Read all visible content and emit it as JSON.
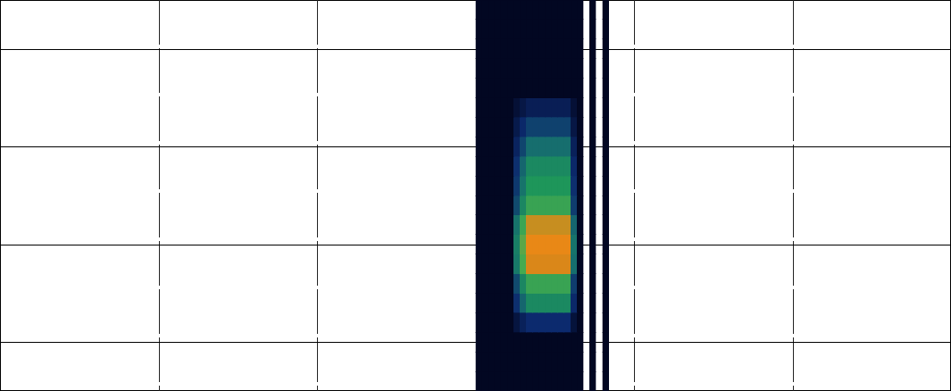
{
  "chart_data": {
    "type": "heatmap",
    "xlim": [
      0,
      6
    ],
    "ylim": [
      0,
      4
    ],
    "xticks": [
      1,
      2,
      3,
      4,
      5
    ],
    "yticks": [
      0.5,
      1.5,
      2.5,
      3.5
    ],
    "grid": true,
    "tick_labels": false,
    "cell_range": [
      0,
      1
    ],
    "x_edges": [
      3.0,
      3.04,
      3.08,
      3.12,
      3.16,
      3.2,
      3.24,
      3.28,
      3.32,
      3.36,
      3.4,
      3.44,
      3.48,
      3.52,
      3.56,
      3.6,
      3.64,
      3.68,
      3.72,
      3.76,
      3.8,
      3.84,
      3.88
    ],
    "y_edges": [
      0,
      0.2,
      0.4,
      0.6,
      0.8,
      1.0,
      1.2,
      1.4,
      1.6,
      1.8,
      2.0,
      2.2,
      2.4,
      2.6,
      2.8,
      3.0,
      3.2,
      3.4,
      3.6,
      3.8,
      4.0
    ],
    "cells": [
      [
        0,
        0,
        0,
        0,
        0,
        0,
        0,
        0,
        0,
        0,
        0,
        0,
        0,
        0,
        0,
        0,
        0,
        null,
        0,
        null,
        0,
        null
      ],
      [
        0,
        0,
        0,
        0,
        0,
        0,
        0,
        0,
        0,
        0,
        0,
        0,
        0,
        0,
        0,
        0,
        0,
        null,
        0,
        null,
        0,
        null
      ],
      [
        0,
        0,
        0,
        0,
        0,
        0,
        0,
        0,
        0,
        0,
        0,
        0,
        0,
        0,
        0,
        0,
        0,
        null,
        0,
        null,
        0,
        null
      ],
      [
        0,
        0,
        0,
        0,
        0,
        0,
        0.06,
        0.11,
        0.15,
        0.15,
        0.15,
        0.15,
        0.15,
        0.15,
        0.15,
        0.05,
        0,
        null,
        0,
        null,
        0,
        null
      ],
      [
        0,
        0,
        0,
        0,
        0,
        0,
        0.16,
        0.28,
        0.4,
        0.4,
        0.4,
        0.4,
        0.4,
        0.4,
        0.4,
        0.14,
        0,
        null,
        0,
        null,
        0,
        null
      ],
      [
        0,
        0,
        0,
        0,
        0,
        0,
        0.22,
        0.39,
        0.55,
        0.55,
        0.55,
        0.55,
        0.55,
        0.55,
        0.55,
        0.19,
        0,
        null,
        0,
        null,
        0,
        null
      ],
      [
        0,
        0,
        0,
        0,
        0,
        0,
        0.34,
        0.6,
        0.85,
        0.85,
        0.85,
        0.85,
        0.85,
        0.85,
        0.85,
        0.3,
        0,
        null,
        0,
        null,
        0,
        null
      ],
      [
        0,
        0,
        0,
        0,
        0,
        0,
        0.36,
        0.63,
        0.9,
        0.9,
        0.9,
        0.9,
        0.9,
        0.9,
        0.9,
        0.32,
        0,
        null,
        0,
        null,
        0,
        null
      ],
      [
        0,
        0,
        0,
        0,
        0,
        0,
        0.32,
        0.56,
        0.8,
        0.8,
        0.8,
        0.8,
        0.8,
        0.8,
        0.8,
        0.28,
        0,
        null,
        0,
        null,
        0,
        null
      ],
      [
        0,
        0,
        0,
        0,
        0,
        0,
        0.22,
        0.39,
        0.55,
        0.55,
        0.55,
        0.55,
        0.55,
        0.55,
        0.55,
        0.19,
        0,
        null,
        0,
        null,
        0,
        null
      ],
      [
        0,
        0,
        0,
        0,
        0,
        0,
        0.18,
        0.32,
        0.45,
        0.45,
        0.45,
        0.45,
        0.45,
        0.45,
        0.45,
        0.16,
        0,
        null,
        0,
        null,
        0,
        null
      ],
      [
        0,
        0,
        0,
        0,
        0,
        0,
        0.16,
        0.28,
        0.4,
        0.4,
        0.4,
        0.4,
        0.4,
        0.4,
        0.4,
        0.14,
        0,
        null,
        0,
        null,
        0,
        null
      ],
      [
        0,
        0,
        0,
        0,
        0,
        0,
        0.12,
        0.21,
        0.3,
        0.3,
        0.3,
        0.3,
        0.3,
        0.3,
        0.3,
        0.11,
        0,
        null,
        0,
        null,
        0,
        null
      ],
      [
        0,
        0,
        0,
        0,
        0,
        0,
        0.08,
        0.14,
        0.2,
        0.2,
        0.2,
        0.2,
        0.2,
        0.2,
        0.2,
        0.07,
        0,
        null,
        0,
        null,
        0,
        null
      ],
      [
        0,
        0,
        0,
        0,
        0,
        0,
        0.04,
        0.07,
        0.1,
        0.1,
        0.1,
        0.1,
        0.1,
        0.1,
        0.1,
        0.04,
        0,
        null,
        0,
        null,
        0,
        null
      ],
      [
        0,
        0,
        0,
        0,
        0,
        0,
        0,
        0,
        0,
        0,
        0,
        0,
        0,
        0,
        0,
        0,
        0,
        null,
        0,
        null,
        0,
        null
      ],
      [
        0,
        0,
        0,
        0,
        0,
        0,
        0,
        0,
        0,
        0,
        0,
        0,
        0,
        0,
        0,
        0,
        0,
        null,
        0,
        null,
        0,
        null
      ],
      [
        0,
        0,
        0,
        0,
        0,
        0,
        0,
        0,
        0,
        0,
        0,
        0,
        0,
        0,
        0,
        0,
        0,
        null,
        0,
        null,
        0,
        null
      ],
      [
        0,
        0,
        0,
        0,
        0,
        0,
        0,
        0,
        0,
        0,
        0,
        0,
        0,
        0,
        0,
        0,
        0,
        null,
        0,
        null,
        0,
        null
      ],
      [
        0,
        0,
        0,
        0,
        0,
        0,
        0,
        0,
        0,
        0,
        0,
        0,
        0,
        0,
        0,
        0,
        0,
        null,
        0,
        null,
        0,
        null
      ]
    ]
  }
}
